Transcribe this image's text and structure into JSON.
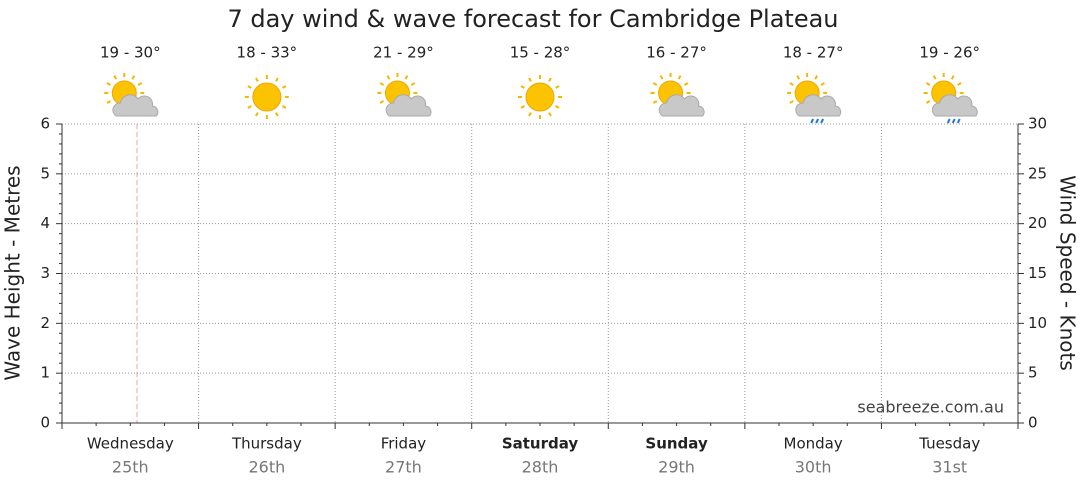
{
  "chart_data": {
    "type": "line",
    "title": "7 day wind & wave forecast for Cambridge Plateau",
    "y_label": "Wave Height - Metres",
    "y2_label": "Wind Speed - Knots",
    "watermark": "seabreeze.com.au",
    "ylim": [
      0,
      6
    ],
    "yticks": [
      0,
      1,
      2,
      3,
      4,
      5,
      6
    ],
    "y2lim": [
      0,
      30
    ],
    "y2ticks": [
      0,
      5,
      10,
      15,
      20,
      25,
      30
    ],
    "grid": true,
    "days": [
      {
        "name": "Wednesday",
        "date": "25th",
        "temp": "19 - 30°",
        "icon": "partly-cloudy",
        "bold": false
      },
      {
        "name": "Thursday",
        "date": "26th",
        "temp": "18 - 33°",
        "icon": "sunny",
        "bold": false
      },
      {
        "name": "Friday",
        "date": "27th",
        "temp": "21 - 29°",
        "icon": "partly-cloudy",
        "bold": false
      },
      {
        "name": "Saturday",
        "date": "28th",
        "temp": "15 - 28°",
        "icon": "sunny",
        "bold": true
      },
      {
        "name": "Sunday",
        "date": "29th",
        "temp": "16 - 27°",
        "icon": "partly-cloudy",
        "bold": true
      },
      {
        "name": "Monday",
        "date": "30th",
        "temp": "18 - 27°",
        "icon": "rain",
        "bold": false
      },
      {
        "name": "Tuesday",
        "date": "31st",
        "temp": "19 - 26°",
        "icon": "rain",
        "bold": false
      }
    ]
  }
}
